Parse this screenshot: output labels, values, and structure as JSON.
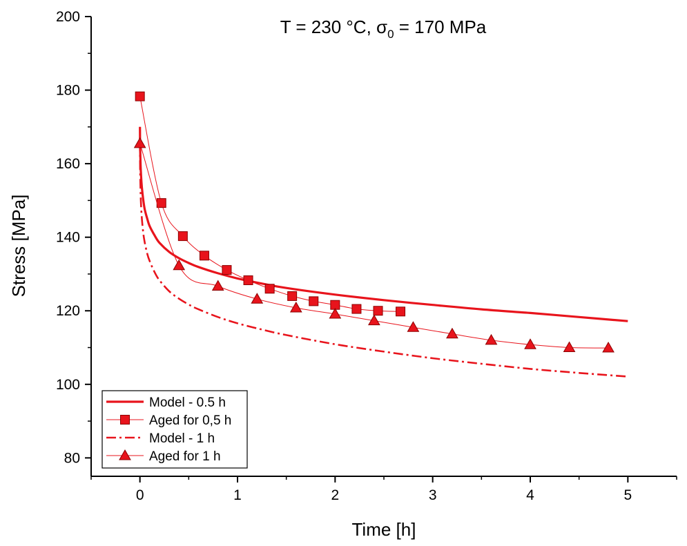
{
  "chart_data": {
    "type": "line",
    "title_parts": {
      "pre": "T = 230 °C, ",
      "sigma": "σ",
      "sub": "0",
      "post": " = 170 MPa"
    },
    "xlabel": "Time [h]",
    "ylabel": "Stress [MPa]",
    "xlim": [
      -0.5,
      5.5
    ],
    "ylim": [
      75,
      200
    ],
    "xticks": [
      0,
      1,
      2,
      3,
      4,
      5
    ],
    "yticks": [
      80,
      100,
      120,
      140,
      160,
      180,
      200
    ],
    "grid": false,
    "legend_position": "bottom-left",
    "color": "#e8141c",
    "series": [
      {
        "name": "Model - 0.5 h",
        "style": "solid-thick",
        "x": [
          0,
          0.002,
          0.005,
          0.01,
          0.02,
          0.035,
          0.05,
          0.075,
          0.1,
          0.15,
          0.2,
          0.3,
          0.4,
          0.5,
          0.6,
          0.8,
          1.0,
          1.25,
          1.5,
          2.0,
          2.5,
          3.0,
          3.5,
          4.0,
          4.5,
          5.0
        ],
        "y": [
          170,
          165,
          161,
          157.5,
          153.5,
          150,
          147.5,
          145,
          143,
          140.5,
          138.5,
          136,
          134.3,
          133,
          131.9,
          130.2,
          128.8,
          127.4,
          126.2,
          124.4,
          122.9,
          121.6,
          120.4,
          119.4,
          118.3,
          117.2
        ]
      },
      {
        "name": "Aged for 0,5 h",
        "style": "thin-line-square",
        "x": [
          0,
          0.22,
          0.44,
          0.66,
          0.89,
          1.11,
          1.33,
          1.56,
          1.78,
          2.0,
          2.22,
          2.44,
          2.67
        ],
        "y": [
          178.3,
          149.3,
          140.3,
          135.0,
          131.1,
          128.3,
          126.0,
          124.0,
          122.6,
          121.6,
          120.5,
          120.0,
          119.8
        ]
      },
      {
        "name": "Model - 1 h",
        "style": "dash-dot",
        "x": [
          0,
          0.002,
          0.005,
          0.01,
          0.02,
          0.035,
          0.05,
          0.075,
          0.1,
          0.15,
          0.2,
          0.3,
          0.4,
          0.5,
          0.6,
          0.8,
          1.0,
          1.25,
          1.5,
          2.0,
          2.5,
          3.0,
          3.5,
          4.0,
          4.5,
          5.0
        ],
        "y": [
          166,
          159,
          154,
          149.5,
          145,
          141,
          138.5,
          135.5,
          133.5,
          130.5,
          128.3,
          125.3,
          123.3,
          121.7,
          120.4,
          118.3,
          116.6,
          114.9,
          113.4,
          110.9,
          108.9,
          107.1,
          105.6,
          104.2,
          103.1,
          102.1
        ]
      },
      {
        "name": "Aged for 1 h",
        "style": "thin-line-triangle",
        "x": [
          0,
          0.4,
          0.8,
          1.2,
          1.6,
          2.0,
          2.4,
          2.8,
          3.2,
          3.6,
          4.0,
          4.4,
          4.8
        ],
        "y": [
          165.5,
          132.3,
          126.7,
          123.2,
          120.8,
          119.1,
          117.3,
          115.5,
          113.7,
          112.0,
          110.8,
          110.0,
          109.9
        ]
      }
    ]
  }
}
